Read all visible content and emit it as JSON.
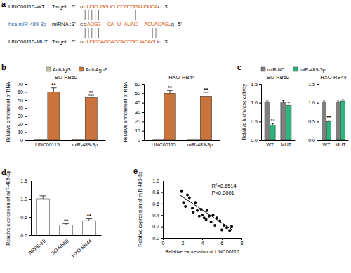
{
  "chart_data": [
    {
      "type": "alignment",
      "panel_label": "a",
      "rows": [
        {
          "name": "LINC00115-WT",
          "role": "Target :",
          "end5": "5'",
          "sequence": "ucUGCUGGUCUCCGCGGAUGUCAc",
          "end3": "3'"
        },
        {
          "name": "hsa-miR-489-3p",
          "role": "miRNA :",
          "end5": "3'",
          "sequence": "cgACGG--CA-U-AUAC--ACUACAGUg",
          "end3": "5'"
        },
        {
          "name": "LINC00115-MUT",
          "role": "Target :",
          "end5": "5'",
          "sequence": "ucUGCCAGCACCACCGCUACAGUc",
          "end3": "3'"
        }
      ]
    },
    {
      "type": "bar",
      "panel_label": "b",
      "title": "SO-RB50",
      "ylabel": "Relative enrichment of RNA",
      "categories": [
        "LINC00115",
        "miR-489-3p"
      ],
      "series": [
        {
          "name": "Anti-IgG",
          "color": "#c8c6a7",
          "values": [
            1,
            1
          ],
          "errors": [
            0.2,
            0.2
          ]
        },
        {
          "name": "Anti-Ago2",
          "color": "#c9733d",
          "values": [
            60,
            53
          ],
          "errors": [
            5,
            3
          ]
        }
      ],
      "ylim": [
        0,
        70
      ],
      "yticks": [
        0,
        10,
        20,
        30,
        40,
        50,
        60,
        70
      ],
      "legend": "top",
      "annotations": [
        {
          "text": "**",
          "series": 1,
          "index": 0
        },
        {
          "text": "**",
          "series": 1,
          "index": 1
        }
      ]
    },
    {
      "type": "bar",
      "title": "HXO-RB44",
      "ylabel": "Relative enrichment of RNA",
      "categories": [
        "LINC00115",
        "miR-489-3p"
      ],
      "series": [
        {
          "color": "#c8c6a7",
          "values": [
            1,
            1
          ],
          "errors": [
            0.2,
            0.2
          ]
        },
        {
          "color": "#c9733d",
          "values": [
            50,
            47
          ],
          "errors": [
            3,
            4
          ]
        }
      ],
      "ylim": [
        0,
        60
      ],
      "yticks": [
        0,
        10,
        20,
        30,
        40,
        50,
        60
      ],
      "annotations": [
        {
          "text": "**",
          "series": 1,
          "index": 0
        },
        {
          "text": "**",
          "series": 1,
          "index": 1
        }
      ]
    },
    {
      "type": "bar",
      "panel_label": "c",
      "title": "SO-RB50",
      "ylabel": "Relative luciferase activity",
      "categories": [
        "WT",
        "MUT"
      ],
      "series": [
        {
          "name": "miR-NC",
          "color": "#7f7f7f",
          "values": [
            1.0,
            1.0
          ],
          "errors": [
            0.05,
            0.06
          ]
        },
        {
          "name": "miR-489-3p",
          "color": "#2db57b",
          "values": [
            0.4,
            0.93
          ],
          "errors": [
            0.04,
            0.08
          ]
        }
      ],
      "ylim": [
        0,
        1.5
      ],
      "yticks": [
        {
          "value": 0,
          "label": "0.0"
        },
        {
          "value": 0.5,
          "label": "0.5"
        },
        {
          "value": 1,
          "label": "1.0"
        },
        {
          "value": 1.5,
          "label": "1.5"
        }
      ],
      "legend": "top",
      "annotations": [
        {
          "text": "**",
          "series": 1,
          "index": 0
        }
      ]
    },
    {
      "type": "bar",
      "title": "HXO-RB44",
      "categories": [
        "WT",
        "MUT"
      ],
      "series": [
        {
          "color": "#7f7f7f",
          "values": [
            1.0,
            1.0
          ],
          "errors": [
            0.05,
            0.05
          ]
        },
        {
          "color": "#2db57b",
          "values": [
            0.5,
            1.05
          ],
          "errors": [
            0.03,
            0.04
          ]
        }
      ],
      "ylim": [
        0,
        1.5
      ],
      "yticks": [
        {
          "value": 0,
          "label": "0.0"
        },
        {
          "value": 0.5,
          "label": "0.5"
        },
        {
          "value": 1,
          "label": "1.0"
        },
        {
          "value": 1.5,
          "label": "1.5"
        }
      ],
      "annotations": [
        {
          "text": "**",
          "series": 1,
          "index": 0
        }
      ]
    },
    {
      "type": "bar",
      "panel_label": "d",
      "ylabel": "Relative expression of miR-489-3p",
      "categories": [
        "ARPE-19",
        "SO-RB50",
        "HXO-RB44"
      ],
      "values": [
        1.0,
        0.28,
        0.4
      ],
      "errors": [
        0.08,
        0.04,
        0.05
      ],
      "color": "#ffffff",
      "ylim": [
        0,
        1.5
      ],
      "yticks": [
        {
          "value": 0,
          "label": "0.0"
        },
        {
          "value": 0.5,
          "label": "0.5"
        },
        {
          "value": 1,
          "label": "1.0"
        },
        {
          "value": 1.5,
          "label": "1.5"
        }
      ],
      "annotations": [
        {
          "text": "**",
          "index": 1
        },
        {
          "text": "**",
          "index": 2
        }
      ]
    },
    {
      "type": "scatter",
      "panel_label": "e",
      "xlabel": "Relative expression of LINC00115",
      "ylabel": "Relative expression of miR-489-3p",
      "series": [
        {
          "type": "scatter",
          "color": "#000000",
          "x": [
            1.9,
            2.1,
            2.3,
            2.5,
            2.7,
            3.0,
            3.1,
            3.3,
            3.5,
            3.7,
            3.9,
            4.0,
            4.2,
            4.4,
            4.5,
            4.7,
            4.9,
            5.1,
            5.3,
            5.5,
            5.8,
            6.0,
            6.2,
            6.5,
            6.8,
            7.0
          ],
          "values": [
            0.82,
            0.62,
            0.55,
            0.75,
            0.7,
            0.52,
            0.45,
            0.62,
            0.48,
            0.38,
            0.5,
            0.4,
            0.35,
            0.32,
            0.48,
            0.38,
            0.28,
            0.4,
            0.22,
            0.35,
            0.3,
            0.14,
            0.22,
            0.18,
            0.13,
            0.2
          ]
        },
        {
          "type": "line",
          "color": "#000000",
          "x": [
            1.8,
            7.0
          ],
          "values": [
            0.74,
            0.15
          ]
        }
      ],
      "xlim": [
        0,
        8
      ],
      "xticks": [
        0,
        2,
        4,
        6,
        8
      ],
      "ylim": [
        0,
        1.0
      ],
      "yticks": [
        {
          "value": 0,
          "label": "0.0"
        },
        {
          "value": 0.2,
          "label": "0.2"
        },
        {
          "value": 0.4,
          "label": "0.4"
        },
        {
          "value": 0.6,
          "label": "0.6"
        },
        {
          "value": 0.8,
          "label": "0.8"
        },
        {
          "value": 1.0,
          "label": "1.0"
        }
      ],
      "annotations": [
        {
          "text": "R²=0.6514"
        },
        {
          "text": "P<0.0001"
        }
      ]
    }
  ]
}
